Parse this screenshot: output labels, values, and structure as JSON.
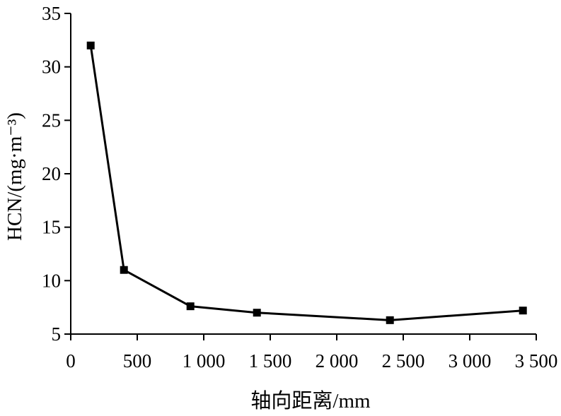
{
  "chart_data": {
    "type": "line",
    "title": "",
    "xlabel": "轴向距离/mm",
    "ylabel": "HCN/(mg·m⁻³)",
    "xlim": [
      0,
      3500
    ],
    "ylim": [
      5,
      35
    ],
    "xticks": [
      {
        "value": 0,
        "label": "0"
      },
      {
        "value": 500,
        "label": "500"
      },
      {
        "value": 1000,
        "label": "1 000"
      },
      {
        "value": 1500,
        "label": "1 500"
      },
      {
        "value": 2000,
        "label": "2 000"
      },
      {
        "value": 2500,
        "label": "2 500"
      },
      {
        "value": 3000,
        "label": "3 000"
      },
      {
        "value": 3500,
        "label": "3 500"
      }
    ],
    "yticks": [
      {
        "value": 5,
        "label": "5"
      },
      {
        "value": 10,
        "label": "10"
      },
      {
        "value": 15,
        "label": "15"
      },
      {
        "value": 20,
        "label": "20"
      },
      {
        "value": 25,
        "label": "25"
      },
      {
        "value": 30,
        "label": "30"
      },
      {
        "value": 35,
        "label": "35"
      }
    ],
    "series": [
      {
        "marker": "square",
        "color": "#000000",
        "x": [
          150,
          400,
          900,
          1400,
          2400,
          3400
        ],
        "y": [
          32,
          11,
          7.6,
          7.0,
          6.3,
          7.2
        ]
      }
    ],
    "grid": false,
    "legend": "none"
  }
}
